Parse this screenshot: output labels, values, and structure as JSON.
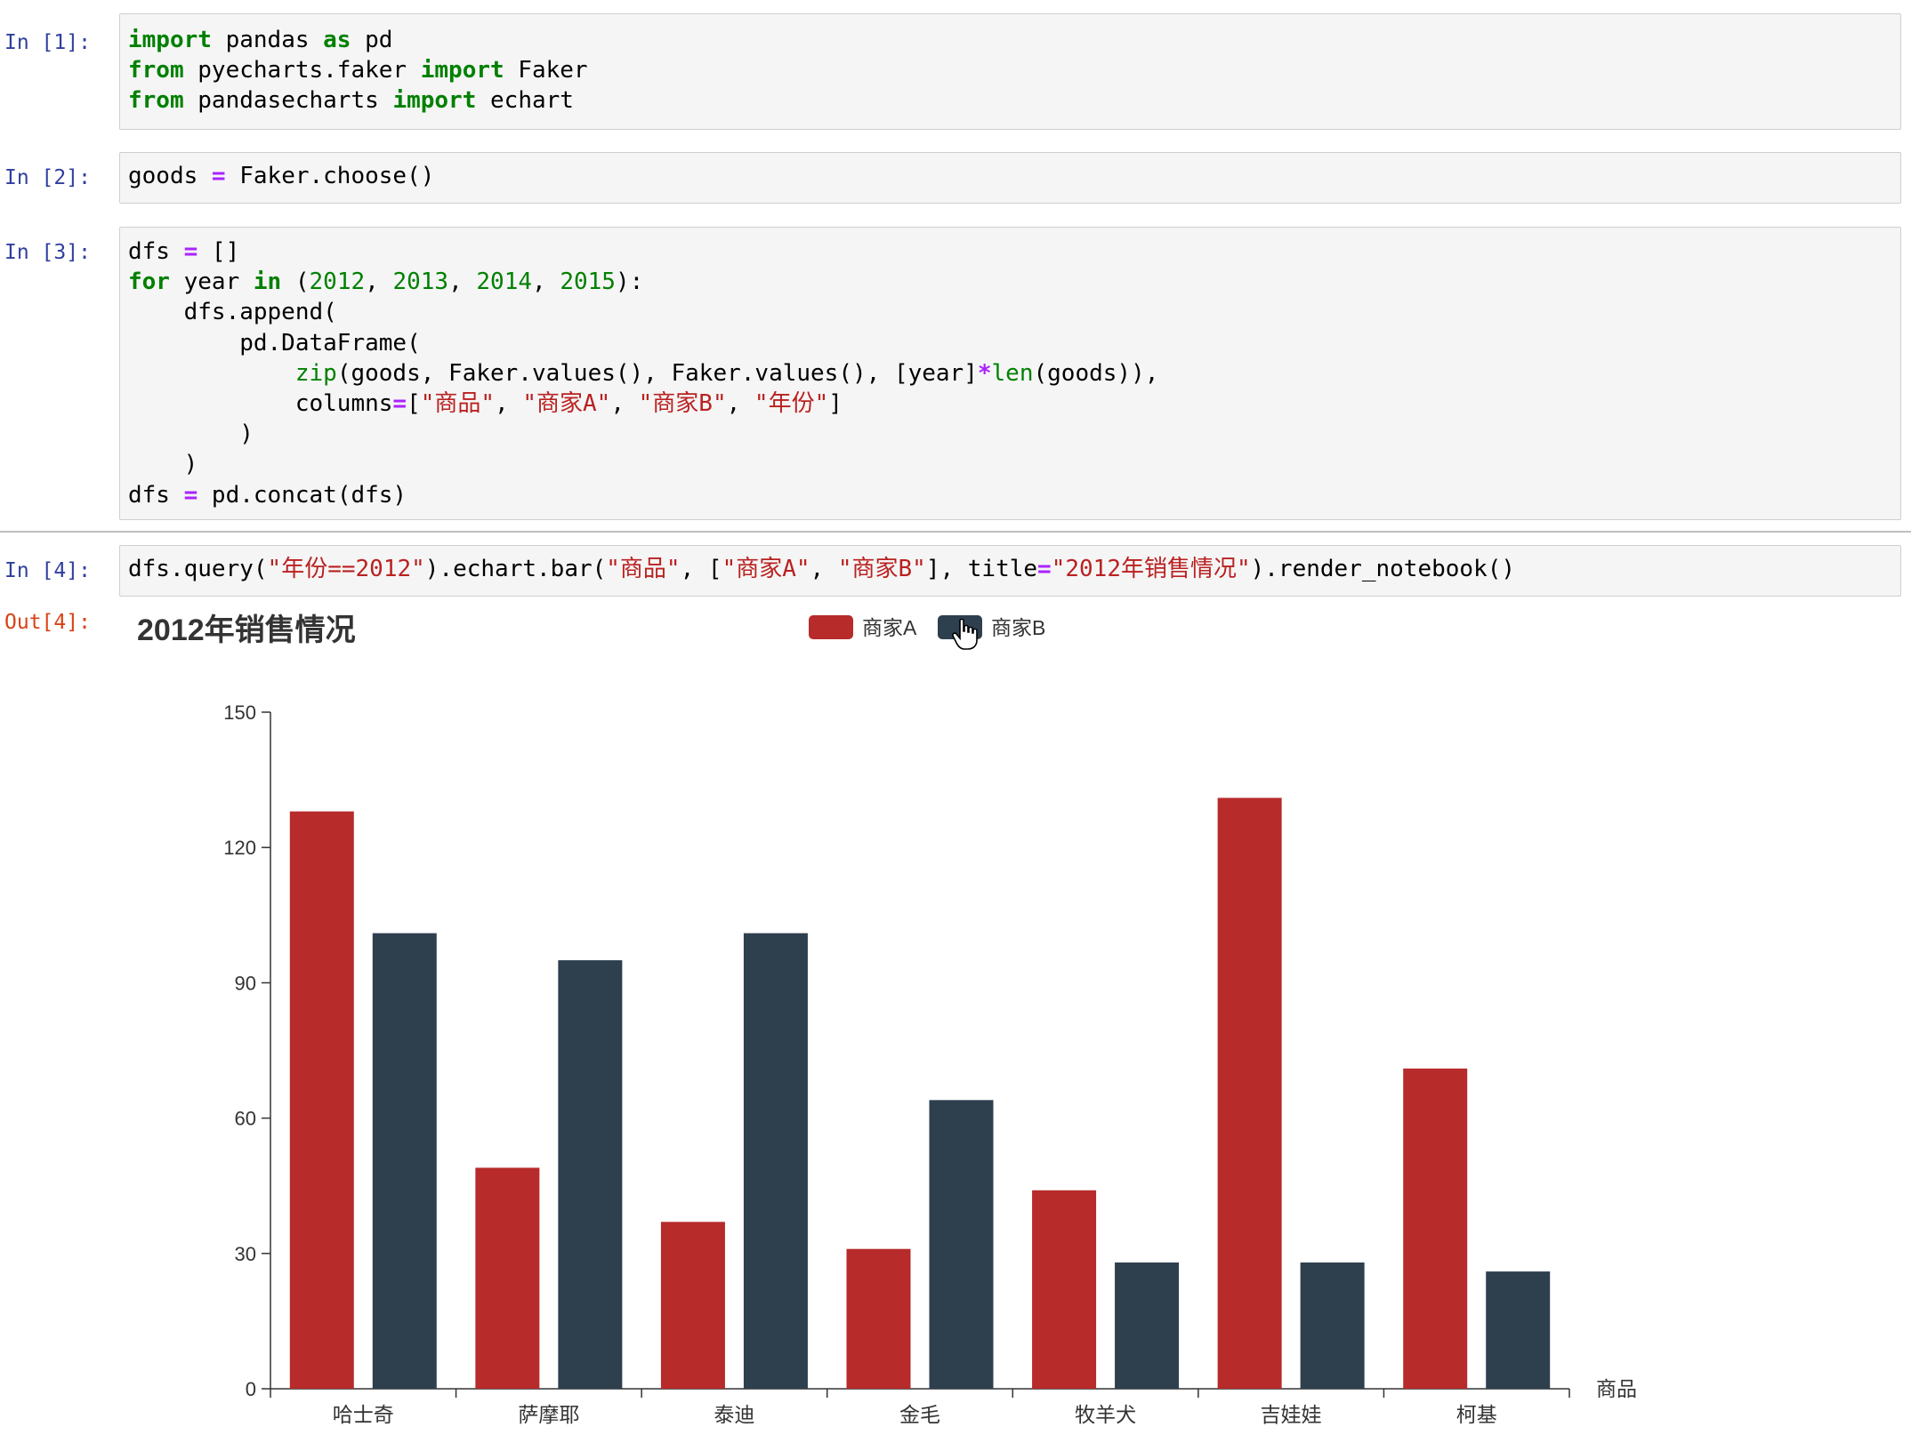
{
  "cells": [
    {
      "prompt": "In [1]:",
      "lines": [
        [
          [
            "k",
            "import"
          ],
          [
            "t",
            " pandas "
          ],
          [
            "k",
            "as"
          ],
          [
            "t",
            " pd"
          ]
        ],
        [
          [
            "k",
            "from"
          ],
          [
            "t",
            " pyecharts.faker "
          ],
          [
            "k",
            "import"
          ],
          [
            "t",
            " Faker"
          ]
        ],
        [
          [
            "k",
            "from"
          ],
          [
            "t",
            " pandasecharts "
          ],
          [
            "k",
            "import"
          ],
          [
            "t",
            " echart"
          ]
        ]
      ]
    },
    {
      "prompt": "In [2]:",
      "lines": [
        [
          [
            "t",
            "goods "
          ],
          [
            "o",
            "="
          ],
          [
            "t",
            " Faker.choose()"
          ]
        ]
      ]
    },
    {
      "prompt": "In [3]:",
      "lines": [
        [
          [
            "t",
            "dfs "
          ],
          [
            "o",
            "="
          ],
          [
            "t",
            " []"
          ]
        ],
        [
          [
            "k",
            "for"
          ],
          [
            "t",
            " year "
          ],
          [
            "k",
            "in"
          ],
          [
            "t",
            " ("
          ],
          [
            "n",
            "2012"
          ],
          [
            "t",
            ", "
          ],
          [
            "n",
            "2013"
          ],
          [
            "t",
            ", "
          ],
          [
            "n",
            "2014"
          ],
          [
            "t",
            ", "
          ],
          [
            "n",
            "2015"
          ],
          [
            "t",
            "):"
          ]
        ],
        [
          [
            "t",
            "    dfs.append("
          ]
        ],
        [
          [
            "t",
            "        pd.DataFrame("
          ]
        ],
        [
          [
            "t",
            "            "
          ],
          [
            "b",
            "zip"
          ],
          [
            "t",
            "(goods, Faker.values(), Faker.values(), [year]"
          ],
          [
            "o",
            "*"
          ],
          [
            "b",
            "len"
          ],
          [
            "t",
            "(goods)),"
          ]
        ],
        [
          [
            "t",
            "            columns"
          ],
          [
            "o",
            "="
          ],
          [
            "t",
            "["
          ],
          [
            "s",
            "\"商品\""
          ],
          [
            "t",
            ", "
          ],
          [
            "s",
            "\"商家A\""
          ],
          [
            "t",
            ", "
          ],
          [
            "s",
            "\"商家B\""
          ],
          [
            "t",
            ", "
          ],
          [
            "s",
            "\"年份\""
          ],
          [
            "t",
            "]"
          ]
        ],
        [
          [
            "t",
            "        )"
          ]
        ],
        [
          [
            "t",
            "    )"
          ]
        ],
        [
          [
            "t",
            "dfs "
          ],
          [
            "o",
            "="
          ],
          [
            "t",
            " pd.concat(dfs)"
          ]
        ]
      ]
    },
    {
      "prompt": "In [4]:",
      "lines": [
        [
          [
            "t",
            "dfs.query("
          ],
          [
            "s",
            "\"年份==2012\""
          ],
          [
            "t",
            ").echart.bar("
          ],
          [
            "s",
            "\"商品\""
          ],
          [
            "t",
            ", ["
          ],
          [
            "s",
            "\"商家A\""
          ],
          [
            "t",
            ", "
          ],
          [
            "s",
            "\"商家B\""
          ],
          [
            "t",
            "], title"
          ],
          [
            "o",
            "="
          ],
          [
            "s",
            "\"2012年销售情况\""
          ],
          [
            "t",
            ").render_notebook()"
          ]
        ]
      ]
    }
  ],
  "output": {
    "prompt": "Out[4]:"
  },
  "chart_data": {
    "type": "bar",
    "title": "2012年销售情况",
    "xlabel": "商品",
    "ylabel": "",
    "categories": [
      "哈士奇",
      "萨摩耶",
      "泰迪",
      "金毛",
      "牧羊犬",
      "吉娃娃",
      "柯基"
    ],
    "series": [
      {
        "name": "商家A",
        "color": "#b72b2b",
        "values": [
          128,
          49,
          37,
          31,
          44,
          131,
          71
        ]
      },
      {
        "name": "商家B",
        "color": "#2e3f4e",
        "values": [
          101,
          95,
          101,
          64,
          28,
          28,
          26
        ]
      }
    ],
    "ylim": [
      0,
      150
    ],
    "yticks": [
      0,
      30,
      60,
      90,
      120,
      150
    ],
    "legend_position": "top-center",
    "grid": false
  }
}
